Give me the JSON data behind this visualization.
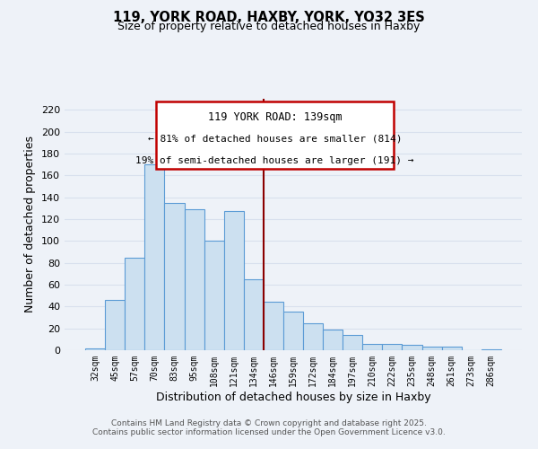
{
  "title": "119, YORK ROAD, HAXBY, YORK, YO32 3ES",
  "subtitle": "Size of property relative to detached houses in Haxby",
  "xlabel": "Distribution of detached houses by size in Haxby",
  "ylabel": "Number of detached properties",
  "bar_color": "#cce0f0",
  "bar_edge_color": "#5b9bd5",
  "categories": [
    "32sqm",
    "45sqm",
    "57sqm",
    "70sqm",
    "83sqm",
    "95sqm",
    "108sqm",
    "121sqm",
    "134sqm",
    "146sqm",
    "159sqm",
    "172sqm",
    "184sqm",
    "197sqm",
    "210sqm",
    "222sqm",
    "235sqm",
    "248sqm",
    "261sqm",
    "273sqm",
    "286sqm"
  ],
  "values": [
    2,
    46,
    85,
    170,
    135,
    129,
    100,
    127,
    65,
    44,
    35,
    25,
    19,
    14,
    6,
    6,
    5,
    3,
    3,
    0,
    1
  ],
  "ylim": [
    0,
    230
  ],
  "yticks": [
    0,
    20,
    40,
    60,
    80,
    100,
    120,
    140,
    160,
    180,
    200,
    220
  ],
  "vline_x": 8.5,
  "vline_color": "#8b0000",
  "annotation_title": "119 YORK ROAD: 139sqm",
  "annotation_line1": "← 81% of detached houses are smaller (814)",
  "annotation_line2": "19% of semi-detached houses are larger (191) →",
  "annotation_box_color": "#c00000",
  "footer_line1": "Contains HM Land Registry data © Crown copyright and database right 2025.",
  "footer_line2": "Contains public sector information licensed under the Open Government Licence v3.0.",
  "background_color": "#eef2f8",
  "grid_color": "#d8e0ed"
}
